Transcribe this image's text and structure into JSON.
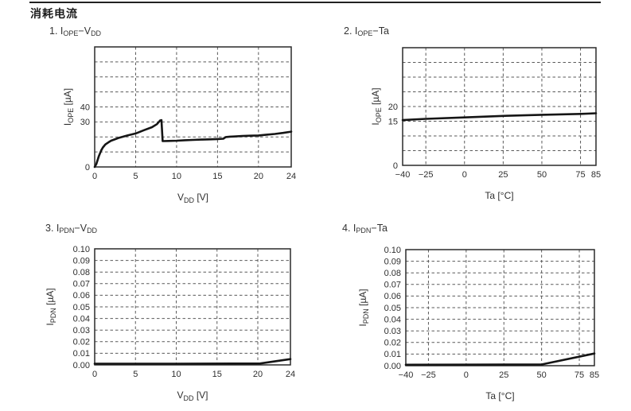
{
  "page": {
    "title": "消耗电流"
  },
  "colors": {
    "ink": "#2e2e2e",
    "curve": "#151515",
    "grid": "#5a5a5a",
    "border": "#2a2a2a"
  },
  "chart_data": [
    {
      "type": "line",
      "number": "1.",
      "title": "IOPE-VDD",
      "title_segments": [
        {
          "t": "I",
          "sub": "OPE"
        },
        {
          "t": "−"
        },
        {
          "t": "V",
          "sub": "DD"
        }
      ],
      "x_axis": {
        "title": "VDD [V]",
        "title_segments": [
          {
            "t": "V",
            "sub": "DD"
          },
          {
            "t": " [V]"
          }
        ],
        "range": [
          0,
          24
        ],
        "gridlines": [
          5,
          10,
          15,
          20
        ],
        "ticks": [
          {
            "v": 0,
            "t": "0"
          },
          {
            "v": 5,
            "t": "5"
          },
          {
            "v": 10,
            "t": "10"
          },
          {
            "v": 15,
            "t": "15"
          },
          {
            "v": 20,
            "t": "20"
          },
          {
            "v": 24,
            "t": "24"
          }
        ]
      },
      "y_axis": {
        "title": "IOPE [µA]",
        "title_segments": [
          {
            "t": "I",
            "sub": "OPE"
          },
          {
            "t": " [µA]"
          }
        ],
        "range": [
          0,
          80
        ],
        "gridlines": [
          10,
          20,
          30,
          40,
          50,
          60,
          70
        ],
        "ticks": [
          {
            "v": 40,
            "t": "40"
          },
          {
            "v": 30,
            "t": "30"
          },
          {
            "v": 0,
            "t": "0"
          }
        ]
      },
      "series": [
        {
          "name": "IOPE vs VDD",
          "points": [
            [
              0,
              0
            ],
            [
              0.2,
              2
            ],
            [
              0.5,
              7
            ],
            [
              0.8,
              11
            ],
            [
              1,
              13
            ],
            [
              1.3,
              15
            ],
            [
              1.7,
              16.5
            ],
            [
              2,
              17.5
            ],
            [
              2.5,
              18.5
            ],
            [
              3,
              19.5
            ],
            [
              4,
              21
            ],
            [
              5,
              22.3
            ],
            [
              6,
              24.5
            ],
            [
              7,
              26.5
            ],
            [
              7.6,
              28.5
            ],
            [
              8,
              31
            ],
            [
              8.15,
              31.2
            ],
            [
              8.3,
              17.2
            ],
            [
              9,
              17.3
            ],
            [
              10,
              17.5
            ],
            [
              11,
              17.8
            ],
            [
              12,
              18
            ],
            [
              13,
              18.2
            ],
            [
              14,
              18.4
            ],
            [
              15,
              18.6
            ],
            [
              15.7,
              18.8
            ],
            [
              16,
              19.9
            ],
            [
              16.5,
              20.2
            ],
            [
              17,
              20.3
            ],
            [
              18,
              20.6
            ],
            [
              19,
              20.8
            ],
            [
              20,
              21
            ],
            [
              21,
              21.5
            ],
            [
              22,
              22
            ],
            [
              23,
              22.7
            ],
            [
              24,
              23.5
            ]
          ]
        }
      ]
    },
    {
      "type": "line",
      "number": "2.",
      "title": "IOPE-Ta",
      "title_segments": [
        {
          "t": "I",
          "sub": "OPE"
        },
        {
          "t": "−Ta"
        }
      ],
      "x_axis": {
        "title": "Ta [°C]",
        "title_segments": [
          {
            "t": "Ta [°C]"
          }
        ],
        "range": [
          -40,
          85
        ],
        "gridlines": [
          -25,
          0,
          25,
          50,
          75
        ],
        "ticks": [
          {
            "v": -40,
            "t": "−40"
          },
          {
            "v": -25,
            "t": "−25"
          },
          {
            "v": 0,
            "t": "0"
          },
          {
            "v": 25,
            "t": "25"
          },
          {
            "v": 50,
            "t": "50"
          },
          {
            "v": 75,
            "t": "75"
          },
          {
            "v": 85,
            "t": "85"
          }
        ]
      },
      "y_axis": {
        "title": "IOPE [µA]",
        "title_segments": [
          {
            "t": "I",
            "sub": "OPE"
          },
          {
            "t": " [µA]"
          }
        ],
        "range": [
          0,
          40
        ],
        "gridlines": [
          5,
          10,
          15,
          20,
          25,
          30,
          35
        ],
        "ticks": [
          {
            "v": 20,
            "t": "20"
          },
          {
            "v": 15,
            "t": "15"
          },
          {
            "v": 0,
            "t": "0"
          }
        ]
      },
      "series": [
        {
          "name": "IOPE vs Ta",
          "points": [
            [
              -40,
              15.4
            ],
            [
              -25,
              15.8
            ],
            [
              0,
              16.3
            ],
            [
              25,
              16.8
            ],
            [
              50,
              17.2
            ],
            [
              75,
              17.5
            ],
            [
              85,
              17.7
            ]
          ]
        }
      ]
    },
    {
      "type": "line",
      "number": "3.",
      "title": "IPDN-VDD",
      "title_segments": [
        {
          "t": "I",
          "sub": "PDN"
        },
        {
          "t": "−"
        },
        {
          "t": "V",
          "sub": "DD"
        }
      ],
      "x_axis": {
        "title": "VDD [V]",
        "title_segments": [
          {
            "t": "V",
            "sub": "DD"
          },
          {
            "t": " [V]"
          }
        ],
        "range": [
          0,
          24
        ],
        "gridlines": [
          5,
          10,
          15,
          20
        ],
        "ticks": [
          {
            "v": 0,
            "t": "0"
          },
          {
            "v": 5,
            "t": "5"
          },
          {
            "v": 10,
            "t": "10"
          },
          {
            "v": 15,
            "t": "15"
          },
          {
            "v": 20,
            "t": "20"
          },
          {
            "v": 24,
            "t": "24"
          }
        ]
      },
      "y_axis": {
        "title": "IPDN [µA]",
        "title_segments": [
          {
            "t": "I",
            "sub": "PDN"
          },
          {
            "t": " [µA]"
          }
        ],
        "range": [
          0,
          0.1
        ],
        "gridlines": [
          0.01,
          0.02,
          0.03,
          0.04,
          0.05,
          0.06,
          0.07,
          0.08,
          0.09
        ],
        "ticks": [
          {
            "v": 0.1,
            "t": "0.10"
          },
          {
            "v": 0.09,
            "t": "0.09"
          },
          {
            "v": 0.08,
            "t": "0.08"
          },
          {
            "v": 0.07,
            "t": "0.07"
          },
          {
            "v": 0.06,
            "t": "0.06"
          },
          {
            "v": 0.05,
            "t": "0.05"
          },
          {
            "v": 0.04,
            "t": "0.04"
          },
          {
            "v": 0.03,
            "t": "0.03"
          },
          {
            "v": 0.02,
            "t": "0.02"
          },
          {
            "v": 0.01,
            "t": "0.01"
          },
          {
            "v": 0,
            "t": "0.00"
          }
        ]
      },
      "series": [
        {
          "name": "IPDN vs VDD",
          "points": [
            [
              0,
              0.001
            ],
            [
              10,
              0.001
            ],
            [
              20.3,
              0.0012
            ],
            [
              24,
              0.005
            ]
          ]
        }
      ]
    },
    {
      "type": "line",
      "number": "4.",
      "title": "IPDN-Ta",
      "title_segments": [
        {
          "t": "I",
          "sub": "PDN"
        },
        {
          "t": "−Ta"
        }
      ],
      "x_axis": {
        "title": "Ta [°C]",
        "title_segments": [
          {
            "t": "Ta [°C]"
          }
        ],
        "range": [
          -40,
          85
        ],
        "gridlines": [
          -25,
          0,
          25,
          50,
          75
        ],
        "ticks": [
          {
            "v": -40,
            "t": "−40"
          },
          {
            "v": -25,
            "t": "−25"
          },
          {
            "v": 0,
            "t": "0"
          },
          {
            "v": 25,
            "t": "25"
          },
          {
            "v": 50,
            "t": "50"
          },
          {
            "v": 75,
            "t": "75"
          },
          {
            "v": 85,
            "t": "85"
          }
        ]
      },
      "y_axis": {
        "title": "IPDN [µA]",
        "title_segments": [
          {
            "t": "I",
            "sub": "PDN"
          },
          {
            "t": " [µA]"
          }
        ],
        "range": [
          0,
          0.1
        ],
        "gridlines": [
          0.01,
          0.02,
          0.03,
          0.04,
          0.05,
          0.06,
          0.07,
          0.08,
          0.09
        ],
        "ticks": [
          {
            "v": 0.1,
            "t": "0.10"
          },
          {
            "v": 0.09,
            "t": "0.09"
          },
          {
            "v": 0.08,
            "t": "0.08"
          },
          {
            "v": 0.07,
            "t": "0.07"
          },
          {
            "v": 0.06,
            "t": "0.06"
          },
          {
            "v": 0.05,
            "t": "0.05"
          },
          {
            "v": 0.04,
            "t": "0.04"
          },
          {
            "v": 0.03,
            "t": "0.03"
          },
          {
            "v": 0.02,
            "t": "0.02"
          },
          {
            "v": 0.01,
            "t": "0.01"
          },
          {
            "v": 0,
            "t": "0.00"
          }
        ]
      },
      "series": [
        {
          "name": "IPDN vs Ta",
          "points": [
            [
              -40,
              0.0008
            ],
            [
              0,
              0.0009
            ],
            [
              50,
              0.001
            ],
            [
              85,
              0.0105
            ]
          ]
        }
      ]
    }
  ]
}
